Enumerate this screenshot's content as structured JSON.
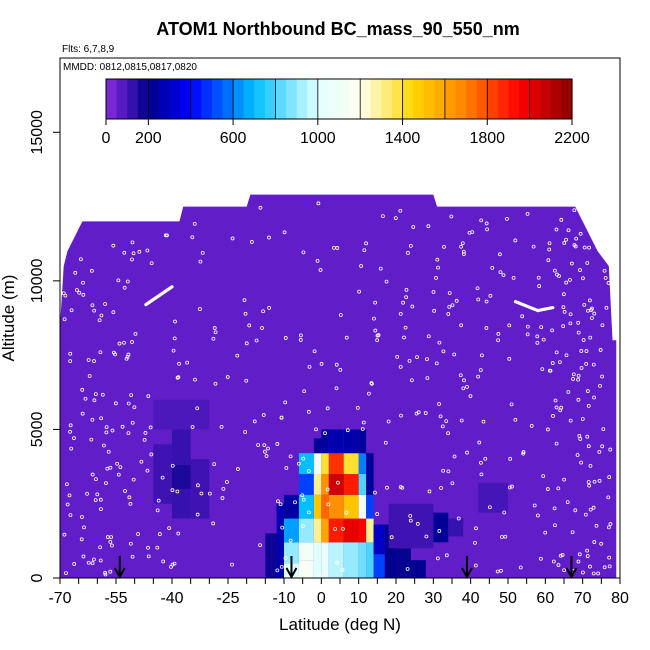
{
  "chart_data": {
    "type": "heatmap",
    "title": "ATOM1 Northbound BC_mass_90_550_nm",
    "subtitle": "Flts: 6,7,8,9",
    "annotation": "MMDD: 0812,0815,0817,0820",
    "xlabel": "Latitude (deg N)",
    "ylabel": "Altitude (m)",
    "xlim": [
      -70,
      80
    ],
    "ylim": [
      0,
      17500
    ],
    "x_ticks": [
      "-70",
      "-55",
      "-40",
      "-25",
      "-10",
      "0",
      "10",
      "20",
      "30",
      "40",
      "50",
      "60",
      "70",
      "80"
    ],
    "x_tick_values": [
      -70,
      -55,
      -40,
      -25,
      -10,
      0,
      10,
      20,
      30,
      40,
      50,
      60,
      70,
      80
    ],
    "y_ticks": [
      "0",
      "5000",
      "10000",
      "15000"
    ],
    "y_tick_values": [
      0,
      5000,
      10000,
      15000
    ],
    "colorbar": {
      "range": [
        0,
        2200
      ],
      "tick_labels": [
        "0",
        "200",
        "600",
        "1000",
        "1400",
        "1800",
        "2200"
      ],
      "tick_values": [
        0,
        200,
        600,
        1000,
        1400,
        1800,
        2200
      ]
    },
    "background_value": 60,
    "data_ceiling": [
      {
        "lat": -70,
        "alt": 8500
      },
      {
        "lat": -69,
        "alt": 10500
      },
      {
        "lat": -68,
        "alt": 11000
      },
      {
        "lat": -66,
        "alt": 11500
      },
      {
        "lat": -64,
        "alt": 12000
      },
      {
        "lat": -38,
        "alt": 12000
      },
      {
        "lat": -37,
        "alt": 12500
      },
      {
        "lat": -20,
        "alt": 12500
      },
      {
        "lat": -19,
        "alt": 12900
      },
      {
        "lat": 30,
        "alt": 12900
      },
      {
        "lat": 31,
        "alt": 12500
      },
      {
        "lat": 68,
        "alt": 12500
      },
      {
        "lat": 70,
        "alt": 12000
      },
      {
        "lat": 72,
        "alt": 11500
      },
      {
        "lat": 74,
        "alt": 11000
      },
      {
        "lat": 77,
        "alt": 10500
      },
      {
        "lat": 78,
        "alt": 8000
      },
      {
        "lat": 79,
        "alt": 8000
      }
    ],
    "cells": [
      {
        "lat": [
          -45,
          -40
        ],
        "alt": [
          2500,
          4500
        ],
        "value": 110
      },
      {
        "lat": [
          -40,
          -35
        ],
        "alt": [
          2000,
          5000
        ],
        "value": 120
      },
      {
        "lat": [
          -40,
          -35
        ],
        "alt": [
          3000,
          3800
        ],
        "value": 160
      },
      {
        "lat": [
          -35,
          -30
        ],
        "alt": [
          2000,
          4000
        ],
        "value": 110
      },
      {
        "lat": [
          -45,
          -30
        ],
        "alt": [
          5000,
          6000
        ],
        "value": 90
      },
      {
        "lat": [
          -15,
          -12
        ],
        "alt": [
          0,
          1500
        ],
        "value": 180
      },
      {
        "lat": [
          -12,
          -10
        ],
        "alt": [
          0,
          2500
        ],
        "value": 260
      },
      {
        "lat": [
          -10,
          -6
        ],
        "alt": [
          0,
          500
        ],
        "value": 1000
      },
      {
        "lat": [
          -10,
          -6
        ],
        "alt": [
          500,
          1200
        ],
        "value": 900
      },
      {
        "lat": [
          -10,
          -6
        ],
        "alt": [
          1200,
          2000
        ],
        "value": 650
      },
      {
        "lat": [
          -10,
          -6
        ],
        "alt": [
          2000,
          2800
        ],
        "value": 240
      },
      {
        "lat": [
          -6,
          -2
        ],
        "alt": [
          0,
          600
        ],
        "value": 1150
      },
      {
        "lat": [
          -6,
          -2
        ],
        "alt": [
          600,
          1200
        ],
        "value": 1100
      },
      {
        "lat": [
          -6,
          -2
        ],
        "alt": [
          1200,
          2000
        ],
        "value": 900
      },
      {
        "lat": [
          -6,
          -2
        ],
        "alt": [
          2000,
          2800
        ],
        "value": 700
      },
      {
        "lat": [
          -6,
          -2
        ],
        "alt": [
          2800,
          3500
        ],
        "value": 500
      },
      {
        "lat": [
          -6,
          -2
        ],
        "alt": [
          3500,
          4200
        ],
        "value": 700
      },
      {
        "lat": [
          -2,
          0
        ],
        "alt": [
          0,
          1200
        ],
        "value": 1000
      },
      {
        "lat": [
          -2,
          0
        ],
        "alt": [
          1200,
          2000
        ],
        "value": 1300
      },
      {
        "lat": [
          -2,
          0
        ],
        "alt": [
          2000,
          2800
        ],
        "value": 1500
      },
      {
        "lat": [
          -2,
          0
        ],
        "alt": [
          2800,
          3500
        ],
        "value": 1300
      },
      {
        "lat": [
          -2,
          0
        ],
        "alt": [
          3500,
          4200
        ],
        "value": 1100
      },
      {
        "lat": [
          -2,
          0
        ],
        "alt": [
          4200,
          4700
        ],
        "value": 220
      },
      {
        "lat": [
          0,
          2
        ],
        "alt": [
          0,
          1200
        ],
        "value": 1050
      },
      {
        "lat": [
          0,
          2
        ],
        "alt": [
          1200,
          2000
        ],
        "value": 1600
      },
      {
        "lat": [
          0,
          2
        ],
        "alt": [
          2000,
          2800
        ],
        "value": 1750
      },
      {
        "lat": [
          0,
          2
        ],
        "alt": [
          2800,
          3500
        ],
        "value": 1650
      },
      {
        "lat": [
          0,
          2
        ],
        "alt": [
          3500,
          4200
        ],
        "value": 1400
      },
      {
        "lat": [
          0,
          2
        ],
        "alt": [
          4200,
          5000
        ],
        "value": 230
      },
      {
        "lat": [
          2,
          6
        ],
        "alt": [
          0,
          1200
        ],
        "value": 950
      },
      {
        "lat": [
          2,
          6
        ],
        "alt": [
          1200,
          2000
        ],
        "value": 1900
      },
      {
        "lat": [
          2,
          6
        ],
        "alt": [
          2000,
          2800
        ],
        "value": 1650
      },
      {
        "lat": [
          2,
          6
        ],
        "alt": [
          2800,
          3500
        ],
        "value": 2050
      },
      {
        "lat": [
          2,
          6
        ],
        "alt": [
          3500,
          4200
        ],
        "value": 1850
      },
      {
        "lat": [
          2,
          6
        ],
        "alt": [
          4200,
          5000
        ],
        "value": 260
      },
      {
        "lat": [
          6,
          10
        ],
        "alt": [
          0,
          1200
        ],
        "value": 900
      },
      {
        "lat": [
          6,
          10
        ],
        "alt": [
          1200,
          2000
        ],
        "value": 2000
      },
      {
        "lat": [
          6,
          10
        ],
        "alt": [
          2000,
          2800
        ],
        "value": 1500
      },
      {
        "lat": [
          6,
          10
        ],
        "alt": [
          2800,
          3500
        ],
        "value": 1900
      },
      {
        "lat": [
          6,
          10
        ],
        "alt": [
          3500,
          4200
        ],
        "value": 1400
      },
      {
        "lat": [
          6,
          10
        ],
        "alt": [
          4200,
          5000
        ],
        "value": 250
      },
      {
        "lat": [
          10,
          12
        ],
        "alt": [
          0,
          1200
        ],
        "value": 850
      },
      {
        "lat": [
          10,
          12
        ],
        "alt": [
          1200,
          2000
        ],
        "value": 1950
      },
      {
        "lat": [
          10,
          12
        ],
        "alt": [
          2000,
          2800
        ],
        "value": 1100
      },
      {
        "lat": [
          10,
          12
        ],
        "alt": [
          2800,
          3500
        ],
        "value": 800
      },
      {
        "lat": [
          10,
          12
        ],
        "alt": [
          3500,
          4200
        ],
        "value": 600
      },
      {
        "lat": [
          10,
          12
        ],
        "alt": [
          4200,
          5000
        ],
        "value": 230
      },
      {
        "lat": [
          12,
          14
        ],
        "alt": [
          0,
          1200
        ],
        "value": 800
      },
      {
        "lat": [
          12,
          14
        ],
        "alt": [
          1200,
          2000
        ],
        "value": 1300
      },
      {
        "lat": [
          12,
          14
        ],
        "alt": [
          2000,
          2800
        ],
        "value": 500
      },
      {
        "lat": [
          12,
          14
        ],
        "alt": [
          2800,
          4200
        ],
        "value": 230
      },
      {
        "lat": [
          14,
          17
        ],
        "alt": [
          0,
          800
        ],
        "value": 500
      },
      {
        "lat": [
          14,
          17
        ],
        "alt": [
          800,
          1800
        ],
        "value": 300
      },
      {
        "lat": [
          17,
          20
        ],
        "alt": [
          0,
          1800
        ],
        "value": 200
      },
      {
        "lat": [
          20,
          24
        ],
        "alt": [
          0,
          1000
        ],
        "value": 190
      },
      {
        "lat": [
          24,
          28
        ],
        "alt": [
          0,
          600
        ],
        "value": 210
      },
      {
        "lat": [
          30,
          34
        ],
        "alt": [
          1200,
          2200
        ],
        "value": 220
      },
      {
        "lat": [
          34,
          38
        ],
        "alt": [
          1400,
          2000
        ],
        "value": 120
      },
      {
        "lat": [
          18,
          30
        ],
        "alt": [
          1000,
          2500
        ],
        "value": 110
      },
      {
        "lat": [
          42,
          50
        ],
        "alt": [
          2200,
          3200
        ],
        "value": 100
      }
    ],
    "flight_tracks": [
      {
        "from": {
          "lat": -47,
          "alt": 9200
        },
        "to": {
          "lat": -40,
          "alt": 9800
        }
      },
      {
        "from": {
          "lat": 52,
          "alt": 9300
        },
        "to": {
          "lat": 58,
          "alt": 9000
        }
      },
      {
        "from": {
          "lat": 58,
          "alt": 9000
        },
        "to": {
          "lat": 62,
          "alt": 9100
        }
      }
    ],
    "arrow_markers_lat": [
      -54,
      -8,
      39,
      67
    ]
  }
}
